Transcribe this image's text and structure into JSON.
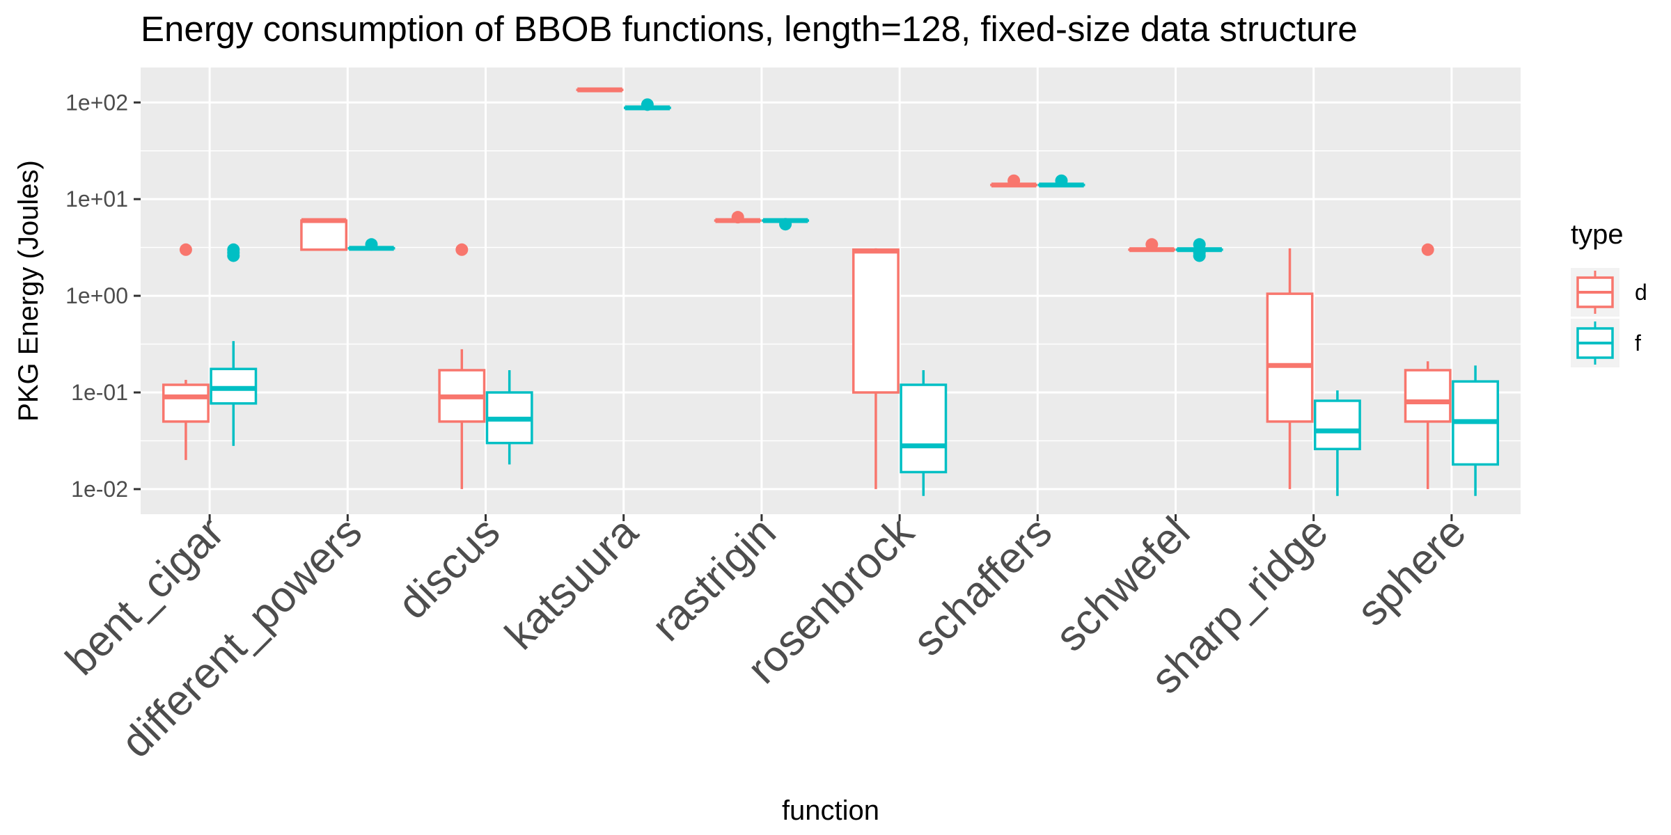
{
  "chart_data": {
    "type": "boxplot",
    "title": "Energy consumption of BBOB functions, length=128, fixed-size data structure",
    "xlabel": "function",
    "ylabel": "PKG Energy (Joules)",
    "yscale": "log10",
    "ylim": [
      0.0055,
      230
    ],
    "yticks": [
      0.01,
      0.1,
      1,
      10,
      100
    ],
    "ytick_labels": [
      "1e-02",
      "1e-01",
      "1e+00",
      "1e+01",
      "1e+02"
    ],
    "grid": true,
    "legend": {
      "title": "type",
      "position": "right",
      "entries": [
        "d",
        "f"
      ]
    },
    "colors": {
      "d": "#F8766D",
      "f": "#00BFC4",
      "panel": "#EBEBEB",
      "grid": "#FFFFFF"
    },
    "categories": [
      "bent_cigar",
      "different_powers",
      "discus",
      "katsuura",
      "rastrigin",
      "rosenbrock",
      "schaffers",
      "schwefel",
      "sharp_ridge",
      "sphere"
    ],
    "series": [
      {
        "name": "d",
        "boxes": [
          {
            "min": 0.02,
            "q1": 0.05,
            "median": 0.09,
            "q3": 0.12,
            "max": 0.135,
            "outliers": [
              3.0
            ]
          },
          {
            "min": 3.0,
            "q1": 3.0,
            "median": 6.0,
            "q3": 6.0,
            "max": 6.0,
            "outliers": []
          },
          {
            "min": 0.01,
            "q1": 0.05,
            "median": 0.09,
            "q3": 0.17,
            "max": 0.28,
            "outliers": [
              3.0
            ]
          },
          {
            "min": 135,
            "q1": 135,
            "median": 135,
            "q3": 135,
            "max": 135,
            "outliers": []
          },
          {
            "min": 6.0,
            "q1": 6.0,
            "median": 6.0,
            "q3": 6.0,
            "max": 6.0,
            "outliers": [
              6.5
            ]
          },
          {
            "min": 0.01,
            "q1": 0.1,
            "median": 2.9,
            "q3": 3.0,
            "max": 3.1,
            "outliers": []
          },
          {
            "min": 14.0,
            "q1": 14.0,
            "median": 14.0,
            "q3": 14.0,
            "max": 14.0,
            "outliers": [
              15.5
            ]
          },
          {
            "min": 3.0,
            "q1": 3.0,
            "median": 3.0,
            "q3": 3.0,
            "max": 3.0,
            "outliers": [
              3.4
            ]
          },
          {
            "min": 0.01,
            "q1": 0.05,
            "median": 0.19,
            "q3": 1.05,
            "max": 3.1,
            "outliers": []
          },
          {
            "min": 0.01,
            "q1": 0.05,
            "median": 0.08,
            "q3": 0.17,
            "max": 0.21,
            "outliers": [
              3.0
            ]
          }
        ]
      },
      {
        "name": "f",
        "boxes": [
          {
            "min": 0.028,
            "q1": 0.077,
            "median": 0.11,
            "q3": 0.175,
            "max": 0.34,
            "outliers": [
              2.6,
              2.8,
              3.0
            ]
          },
          {
            "min": 3.1,
            "q1": 3.1,
            "median": 3.1,
            "q3": 3.1,
            "max": 3.1,
            "outliers": [
              3.4
            ]
          },
          {
            "min": 0.018,
            "q1": 0.03,
            "median": 0.053,
            "q3": 0.1,
            "max": 0.17,
            "outliers": []
          },
          {
            "min": 88,
            "q1": 88,
            "median": 88,
            "q3": 88,
            "max": 88,
            "outliers": [
              95
            ]
          },
          {
            "min": 6.0,
            "q1": 6.0,
            "median": 6.0,
            "q3": 6.0,
            "max": 6.0,
            "outliers": [
              5.5
            ]
          },
          {
            "min": 0.0085,
            "q1": 0.015,
            "median": 0.028,
            "q3": 0.12,
            "max": 0.17,
            "outliers": []
          },
          {
            "min": 14.0,
            "q1": 14.0,
            "median": 14.0,
            "q3": 14.0,
            "max": 14.0,
            "outliers": [
              15.5
            ]
          },
          {
            "min": 3.0,
            "q1": 3.0,
            "median": 3.0,
            "q3": 3.0,
            "max": 3.0,
            "outliers": [
              2.6,
              2.8,
              3.4
            ]
          },
          {
            "min": 0.0085,
            "q1": 0.026,
            "median": 0.04,
            "q3": 0.082,
            "max": 0.105,
            "outliers": []
          },
          {
            "min": 0.0085,
            "q1": 0.018,
            "median": 0.05,
            "q3": 0.13,
            "max": 0.19,
            "outliers": []
          }
        ]
      }
    ]
  }
}
